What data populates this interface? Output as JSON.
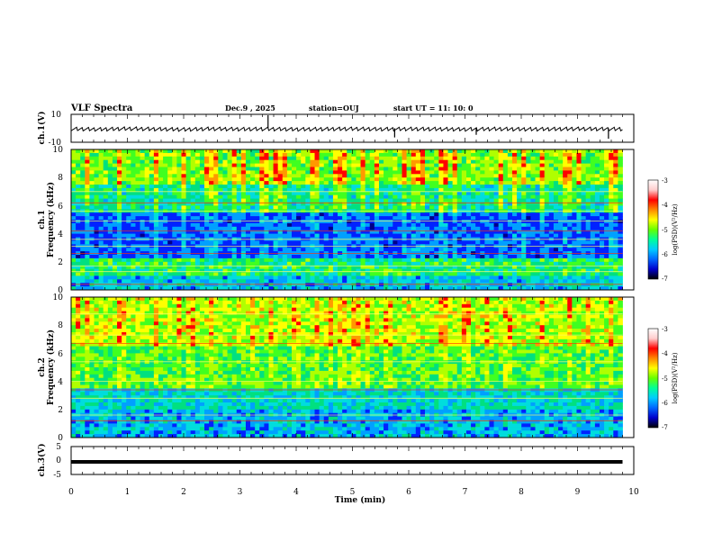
{
  "header": {
    "title": "VLF Spectra",
    "date": "Dec.9 , 2025",
    "station": "station=OUJ",
    "start": "start UT =  11: 10: 0"
  },
  "colors": {
    "spectrum": [
      "#000088",
      "#0022ff",
      "#00a0ff",
      "#00dddd",
      "#00e080",
      "#40ff20",
      "#b0ff00",
      "#ffff00",
      "#ff9900",
      "#ff0000"
    ],
    "colorbar": [
      "#000000",
      "#0000cc",
      "#0066ff",
      "#00ccff",
      "#00ff99",
      "#66ff00",
      "#ffff00",
      "#ff8800",
      "#ff0000",
      "#ffcccc",
      "#ffffff"
    ]
  },
  "chart_data": [
    {
      "type": "line",
      "name": "ch1-waveform",
      "ylabel": "ch.1(V)",
      "ylim": [
        -10,
        10
      ],
      "yticks": [
        "10",
        "-10"
      ],
      "x": [
        0,
        0.5,
        1,
        1.5,
        2,
        2.5,
        3,
        3.5,
        4,
        4.5,
        5,
        5.5,
        6,
        6.5,
        7,
        7.5,
        8,
        8.5,
        9,
        9.5,
        9.8
      ],
      "values": [
        -0.5,
        -0.8,
        -0.3,
        -0.6,
        -0.9,
        -0.4,
        -0.7,
        -0.5,
        -0.8,
        -0.6,
        -0.4,
        -0.7,
        -0.5,
        -0.6,
        -0.8,
        -0.5,
        -0.7,
        -0.6,
        -0.4,
        -0.6,
        -0.5
      ],
      "spikes": [
        {
          "t": 3.5,
          "v": 10
        },
        {
          "t": 5.75,
          "v": -7
        },
        {
          "t": 7.2,
          "v": -5
        },
        {
          "t": 9.55,
          "v": -8
        }
      ]
    },
    {
      "type": "heatmap",
      "name": "ch1-spectrogram",
      "ylabel_line1": "ch.1",
      "ylabel_line2": "Frequency (kHz)",
      "ylim": [
        0,
        10
      ],
      "yticks": [
        "0",
        "2",
        "4",
        "6",
        "8",
        "10"
      ],
      "xlim": [
        0,
        10
      ],
      "data_end_min": 9.8,
      "colorbar": {
        "label": "log(PSD)(V²/Hz)",
        "range": [
          -7,
          -3
        ],
        "ticks": [
          "-3",
          "-4",
          "-5",
          "-6",
          "-7"
        ]
      }
    },
    {
      "type": "heatmap",
      "name": "ch2-spectrogram",
      "ylabel_line1": "ch.2",
      "ylabel_line2": "Frequency (kHz)",
      "ylim": [
        0,
        10
      ],
      "yticks": [
        "0",
        "2",
        "4",
        "6",
        "8",
        "10"
      ],
      "xlim": [
        0,
        10
      ],
      "data_end_min": 9.8,
      "colorbar": {
        "label": "log(PSD)(V²/Hz)",
        "range": [
          -7,
          -3
        ],
        "ticks": [
          "-3",
          "-4",
          "-5",
          "-6",
          "-7"
        ]
      }
    },
    {
      "type": "line",
      "name": "ch3-waveform",
      "ylabel": "ch.3(V)",
      "ylim": [
        -5,
        5
      ],
      "yticks": [
        "5",
        "0",
        "-5"
      ],
      "x": [
        0,
        9.8
      ],
      "values": [
        -0.5,
        -0.5
      ]
    }
  ],
  "xaxis": {
    "label": "Time (min)",
    "ticks": [
      "0",
      "1",
      "2",
      "3",
      "4",
      "5",
      "6",
      "7",
      "8",
      "9",
      "10"
    ]
  }
}
